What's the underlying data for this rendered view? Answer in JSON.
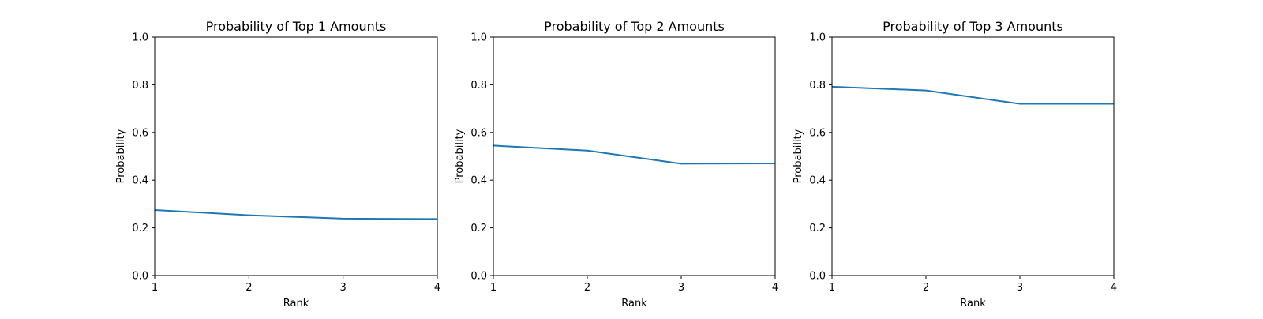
{
  "line_color": "#1f77b4",
  "chart_data": [
    {
      "type": "line",
      "title": "Probability of Top 1 Amounts",
      "xlabel": "Rank",
      "ylabel": "Probability",
      "x": [
        1,
        2,
        3,
        4
      ],
      "xticks": [
        "1",
        "2",
        "3",
        "4"
      ],
      "yticks": [
        "0.0",
        "0.2",
        "0.4",
        "0.6",
        "0.8",
        "1.0"
      ],
      "xlim": [
        1,
        4
      ],
      "ylim": [
        0,
        1
      ],
      "grid": false,
      "series": [
        {
          "values": [
            0.275,
            0.253,
            0.239,
            0.237
          ]
        }
      ]
    },
    {
      "type": "line",
      "title": "Probability of Top 2 Amounts",
      "xlabel": "Rank",
      "ylabel": "Probability",
      "x": [
        1,
        2,
        3,
        4
      ],
      "xticks": [
        "1",
        "2",
        "3",
        "4"
      ],
      "yticks": [
        "0.0",
        "0.2",
        "0.4",
        "0.6",
        "0.8",
        "1.0"
      ],
      "xlim": [
        1,
        4
      ],
      "ylim": [
        0,
        1
      ],
      "grid": false,
      "series": [
        {
          "values": [
            0.545,
            0.524,
            0.469,
            0.47
          ]
        }
      ]
    },
    {
      "type": "line",
      "title": "Probability of Top 3 Amounts",
      "xlabel": "Rank",
      "ylabel": "Probability",
      "x": [
        1,
        2,
        3,
        4
      ],
      "xticks": [
        "1",
        "2",
        "3",
        "4"
      ],
      "yticks": [
        "0.0",
        "0.2",
        "0.4",
        "0.6",
        "0.8",
        "1.0"
      ],
      "xlim": [
        1,
        4
      ],
      "ylim": [
        0,
        1
      ],
      "grid": false,
      "series": [
        {
          "values": [
            0.792,
            0.776,
            0.72,
            0.72
          ]
        }
      ]
    }
  ]
}
